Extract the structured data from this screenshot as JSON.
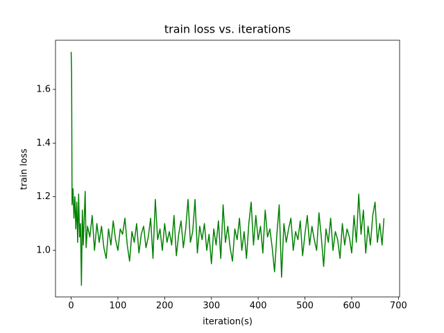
{
  "chart_data": {
    "type": "line",
    "title": "train loss vs. iterations",
    "xlabel": "iteration(s)",
    "ylabel": "train loss",
    "x": [
      0,
      1,
      2,
      4,
      6,
      8,
      10,
      12,
      14,
      16,
      18,
      20,
      22,
      24,
      26,
      28,
      30,
      32,
      35,
      40,
      45,
      50,
      55,
      60,
      65,
      70,
      75,
      80,
      85,
      90,
      95,
      100,
      105,
      110,
      115,
      120,
      125,
      130,
      135,
      140,
      145,
      150,
      155,
      160,
      165,
      170,
      175,
      180,
      185,
      190,
      195,
      200,
      205,
      210,
      215,
      220,
      225,
      230,
      235,
      240,
      245,
      250,
      255,
      260,
      265,
      270,
      275,
      280,
      285,
      290,
      295,
      300,
      305,
      310,
      315,
      320,
      325,
      330,
      335,
      340,
      345,
      350,
      355,
      360,
      365,
      370,
      375,
      380,
      385,
      390,
      395,
      400,
      405,
      410,
      415,
      420,
      425,
      430,
      435,
      440,
      445,
      450,
      455,
      460,
      465,
      470,
      475,
      480,
      485,
      490,
      495,
      500,
      505,
      510,
      515,
      520,
      525,
      530,
      535,
      540,
      545,
      550,
      555,
      560,
      565,
      570,
      575,
      580,
      585,
      590,
      595,
      600,
      605,
      610,
      615,
      620,
      625,
      630,
      635,
      640,
      645,
      650,
      655,
      660,
      665,
      669
    ],
    "series": [
      {
        "name": "train loss",
        "color": "#008000",
        "values": [
          1.74,
          1.66,
          1.17,
          1.23,
          1.12,
          1.2,
          1.08,
          1.18,
          1.03,
          1.21,
          1.05,
          1.1,
          0.87,
          1.15,
          1.02,
          1.12,
          1.22,
          1.01,
          1.09,
          1.05,
          1.13,
          1.0,
          1.1,
          1.03,
          1.09,
          1.01,
          0.97,
          1.08,
          1.02,
          1.11,
          1.04,
          1.0,
          1.08,
          1.06,
          1.12,
          1.02,
          0.96,
          1.07,
          1.03,
          1.1,
          0.99,
          1.06,
          1.09,
          1.01,
          1.05,
          1.12,
          0.97,
          1.19,
          1.04,
          1.08,
          1.0,
          1.1,
          1.03,
          1.07,
          1.02,
          1.13,
          0.98,
          1.06,
          1.11,
          1.01,
          1.08,
          1.19,
          1.03,
          1.07,
          1.19,
          0.99,
          1.09,
          1.04,
          1.1,
          1.0,
          1.06,
          0.95,
          1.08,
          1.02,
          1.11,
          0.97,
          1.17,
          1.03,
          1.09,
          1.01,
          0.96,
          1.08,
          1.04,
          1.12,
          1.0,
          1.07,
          0.97,
          1.1,
          1.18,
          1.02,
          1.13,
          1.04,
          1.09,
          0.99,
          1.15,
          1.05,
          1.08,
          1.01,
          0.92,
          1.06,
          1.17,
          0.9,
          1.1,
          1.03,
          1.08,
          1.12,
          1.0,
          1.07,
          1.04,
          1.11,
          0.98,
          1.06,
          1.13,
          1.02,
          1.09,
          1.04,
          1.0,
          1.14,
          1.05,
          0.94,
          1.08,
          1.03,
          1.12,
          1.0,
          1.07,
          1.04,
          0.97,
          1.1,
          1.02,
          1.08,
          1.05,
          0.99,
          1.13,
          1.03,
          1.21,
          1.06,
          1.15,
          0.99,
          1.09,
          1.02,
          1.13,
          1.18,
          1.03,
          1.1,
          1.02,
          1.12
        ]
      }
    ],
    "xlim": [
      -33.45,
      702.45
    ],
    "xticks": [
      0,
      100,
      200,
      300,
      400,
      500,
      600,
      700
    ],
    "ylim": [
      0.8265,
      1.7835
    ],
    "yticks": [
      {
        "value": 1,
        "label": "1.0"
      },
      1.2,
      1.4,
      1.6
    ]
  }
}
